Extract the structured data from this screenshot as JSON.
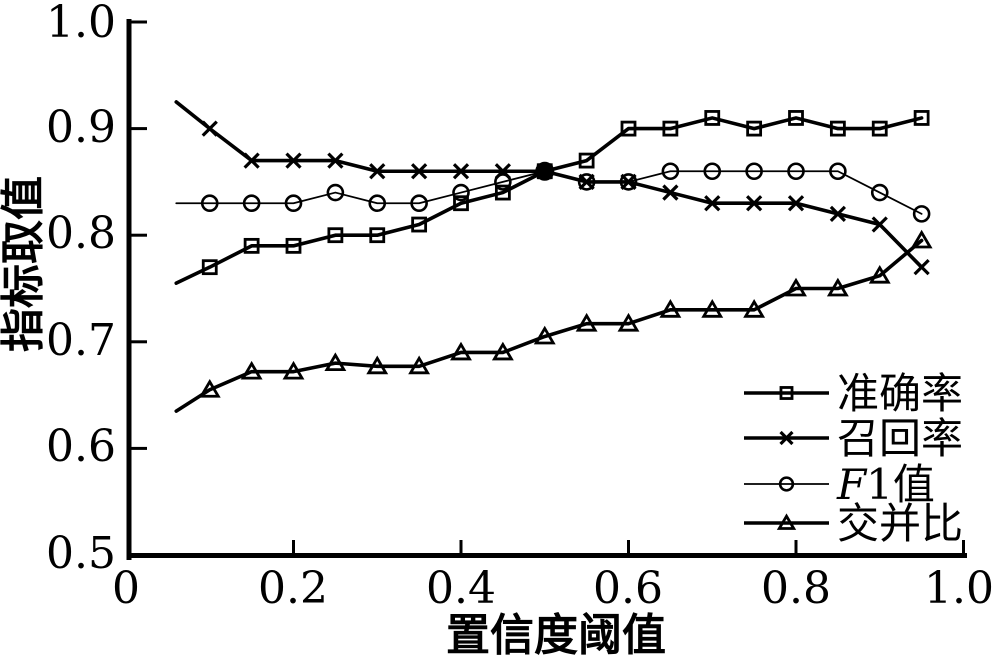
{
  "figure": {
    "background": "#ffffff",
    "ink_color": "#000000"
  },
  "y_axis": {
    "label": "指标取值",
    "tick_labels": [
      "1.0",
      "0.9",
      "0.8",
      "0.7",
      "0.6",
      "0.5"
    ]
  },
  "x_axis": {
    "label": "置信度阈值",
    "tick_labels": [
      "0",
      "0.2",
      "0.4",
      "0.6",
      "0.8",
      "1.0"
    ]
  },
  "legend": {
    "position": "lower-right",
    "items": [
      {
        "label": "准确率",
        "marker": "square"
      },
      {
        "label": "召回率",
        "marker": "x"
      },
      {
        "label": "F1值",
        "italic_prefix": "F",
        "rest": "1值",
        "marker": "circle"
      },
      {
        "label": "交并比",
        "marker": "triangle"
      }
    ]
  },
  "chart_data": {
    "type": "line",
    "title": "",
    "xlabel": "置信度阈值",
    "ylabel": "指标取值",
    "xlim": [
      0,
      1.0
    ],
    "ylim": [
      0.5,
      1.0
    ],
    "x_ticks": [
      0,
      0.2,
      0.4,
      0.6,
      0.8,
      1.0
    ],
    "y_ticks": [
      0.5,
      0.6,
      0.7,
      0.8,
      0.9,
      1.0
    ],
    "grid": false,
    "legend_position": "lower right",
    "x": [
      0.06,
      0.1,
      0.15,
      0.2,
      0.25,
      0.3,
      0.35,
      0.4,
      0.45,
      0.5,
      0.55,
      0.6,
      0.65,
      0.7,
      0.75,
      0.8,
      0.85,
      0.9,
      0.95
    ],
    "markers_from_index": 1,
    "series": [
      {
        "name": "准确率",
        "marker": "square",
        "line_width": 3.6,
        "values": [
          0.755,
          0.77,
          0.79,
          0.79,
          0.8,
          0.8,
          0.81,
          0.83,
          0.84,
          0.86,
          0.87,
          0.9,
          0.9,
          0.91,
          0.9,
          0.91,
          0.9,
          0.9,
          0.91
        ]
      },
      {
        "name": "召回率",
        "marker": "x",
        "line_width": 3.6,
        "values": [
          0.925,
          0.9,
          0.87,
          0.87,
          0.87,
          0.86,
          0.86,
          0.86,
          0.86,
          0.86,
          0.85,
          0.85,
          0.84,
          0.83,
          0.83,
          0.83,
          0.82,
          0.81,
          0.77
        ]
      },
      {
        "name": "F1值",
        "marker": "circle",
        "line_width": 1.8,
        "values": [
          0.83,
          0.83,
          0.83,
          0.83,
          0.84,
          0.83,
          0.83,
          0.84,
          0.85,
          0.86,
          0.85,
          0.85,
          0.86,
          0.86,
          0.86,
          0.86,
          0.86,
          0.84,
          0.82
        ]
      },
      {
        "name": "交并比",
        "marker": "triangle",
        "line_width": 3.6,
        "values": [
          0.635,
          0.655,
          0.672,
          0.672,
          0.68,
          0.677,
          0.677,
          0.69,
          0.69,
          0.705,
          0.717,
          0.717,
          0.73,
          0.73,
          0.73,
          0.75,
          0.75,
          0.762,
          0.795
        ]
      }
    ],
    "overlap_dot": {
      "x": 0.5,
      "y": 0.86
    }
  }
}
